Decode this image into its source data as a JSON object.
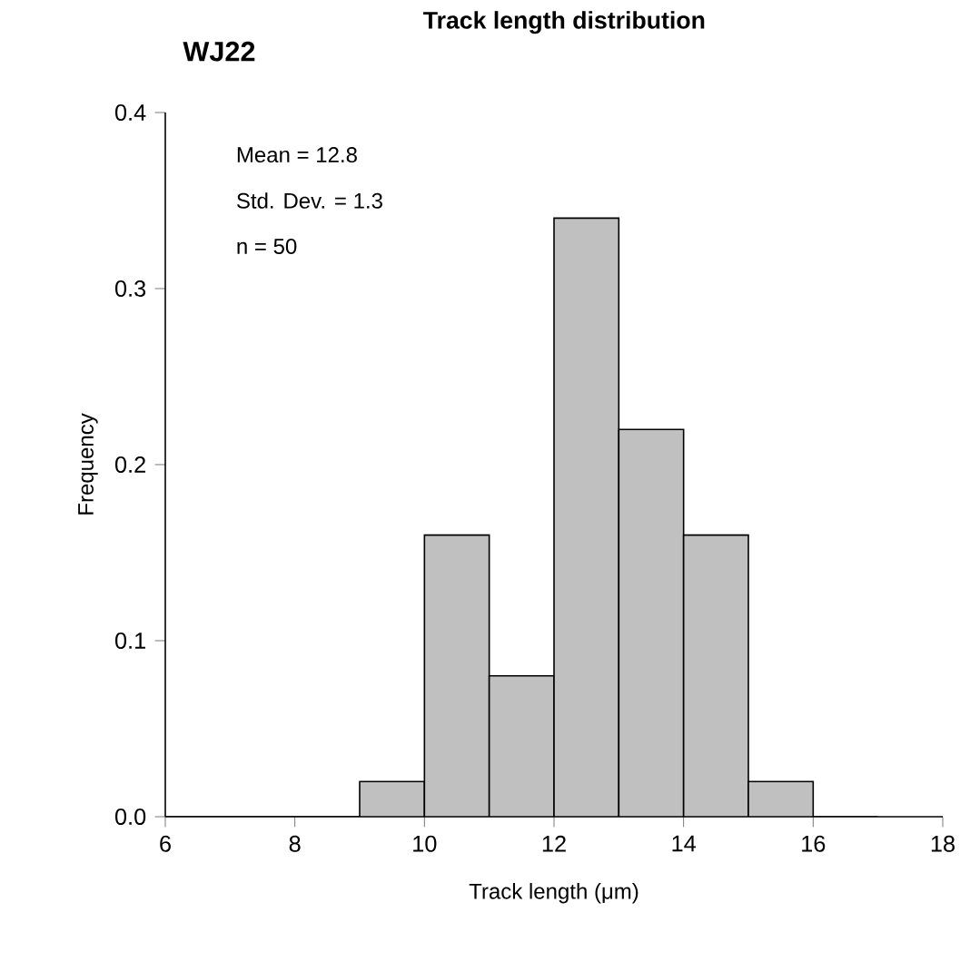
{
  "chart_data": {
    "type": "histogram",
    "title": "Track length distribution",
    "subtitle": "WJ22",
    "xlabel": "Track length (μm)",
    "ylabel": "Frequency",
    "bins": [
      6,
      7,
      8,
      9,
      10,
      11,
      12,
      13,
      14,
      15,
      16,
      17
    ],
    "values": [
      0,
      0,
      0,
      0.02,
      0.16,
      0.08,
      0.34,
      0.22,
      0.16,
      0.02,
      0
    ],
    "color": "#c0c0c0",
    "xlim": [
      6,
      18
    ],
    "xticks": [
      6,
      8,
      10,
      12,
      14,
      16,
      18
    ],
    "ylim": [
      0,
      0.4
    ],
    "yticks": [
      {
        "value": 0,
        "label": "0.0"
      },
      0.1,
      0.2,
      0.3,
      0.4
    ],
    "annotations": [
      "Mean = 12.8",
      "Std. Dev. = 1.3",
      "n = 50"
    ],
    "grid": false
  }
}
